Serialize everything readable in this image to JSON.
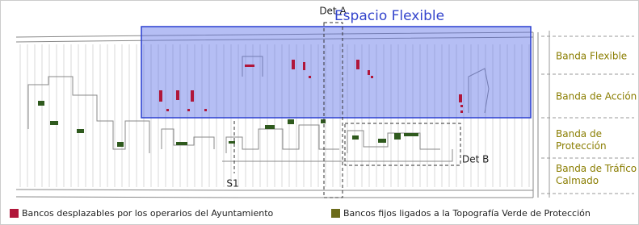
{
  "plan": {
    "det_a": "Det A",
    "flexible_space": "Espacio Flexible",
    "s1": "S1",
    "det_b": "Det B",
    "bands": [
      {
        "lines": [
          "Banda Flexible"
        ]
      },
      {
        "lines": [
          "Banda de Acción"
        ]
      },
      {
        "lines": [
          "Banda de",
          "Protección"
        ]
      },
      {
        "lines": [
          "Banda de Tráfico",
          "Calmado"
        ]
      }
    ]
  },
  "legend": {
    "movable": "Bancos desplazables por los operarios del Ayuntamiento",
    "fixed": "Bancos fijos ligados a la Topografía Verde de Protección"
  }
}
